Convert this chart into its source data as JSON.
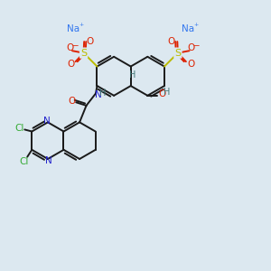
{
  "bg_color": "#dce8f0",
  "bond_color": "#1a1a1a",
  "bond_width": 1.4,
  "Na_color": "#3377ee",
  "S_color": "#bbbb00",
  "O_color": "#dd2200",
  "N_color": "#2222cc",
  "Cl_color": "#33aa33",
  "H_color": "#447777",
  "figsize": [
    3.0,
    3.0
  ],
  "dpi": 100,
  "xlim": [
    0,
    10
  ],
  "ylim": [
    0,
    10
  ]
}
